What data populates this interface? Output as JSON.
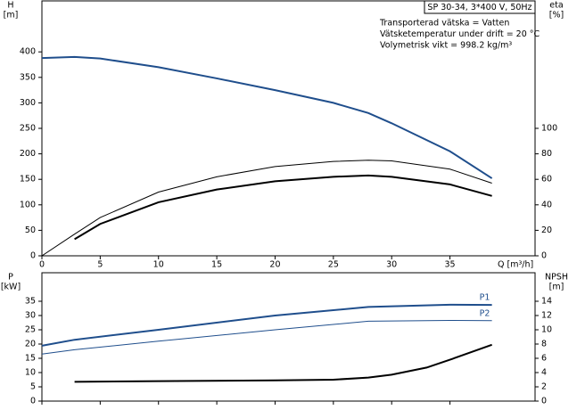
{
  "chart_data": [
    {
      "type": "line",
      "ylabel": "H",
      "yunit": "[m]",
      "y2label": "eta",
      "y2unit": "[%]",
      "xlabel": "Q [m³/h]",
      "info_box": "SP 30-34, 3*400 V, 50Hz",
      "notes": [
        "Transporterad vätska = Vatten",
        "Vätsketemperatur under drift = 20 °C",
        "Volymetrisk vikt = 998.2 kg/m³"
      ],
      "xlim": [
        0,
        42.3
      ],
      "xticks": [
        0,
        5,
        10,
        15,
        20,
        25,
        30,
        35
      ],
      "ylim": [
        0,
        500
      ],
      "yticks": [
        0,
        50,
        100,
        150,
        200,
        250,
        300,
        350,
        400
      ],
      "y2lim": [
        0,
        200
      ],
      "y2ticks": [
        0,
        20,
        40,
        60,
        80,
        100
      ],
      "series": [
        {
          "color": "#1f4e8c",
          "width": 2,
          "x": [
            0,
            2.8,
            5,
            10,
            15,
            20,
            25,
            28,
            30,
            35,
            38.6
          ],
          "values": [
            388,
            390,
            387,
            370,
            348,
            325,
            300,
            280,
            260,
            205,
            152
          ]
        },
        {
          "color": "#000000",
          "width": 1,
          "axis": "y2",
          "x": [
            0,
            2.8,
            5,
            10,
            15,
            20,
            25,
            28,
            30,
            35,
            38.6
          ],
          "values": [
            0,
            17,
            30,
            50,
            62,
            70,
            74,
            75,
            74.5,
            68,
            57
          ]
        },
        {
          "color": "#000000",
          "width": 2,
          "axis": "y2",
          "x": [
            2.8,
            5,
            10,
            15,
            20,
            25,
            28,
            30,
            35,
            38.6
          ],
          "values": [
            13,
            25,
            42,
            52,
            58.5,
            62,
            63,
            62,
            56,
            47
          ]
        }
      ]
    },
    {
      "type": "line",
      "ylabel": "P",
      "yunit": "[kW]",
      "y2label": "NPSH",
      "y2unit": "[m]",
      "xlim": [
        0,
        42.3
      ],
      "xticks": [
        0,
        5,
        10,
        15,
        20,
        25,
        30,
        35
      ],
      "ylim": [
        0,
        45
      ],
      "yticks": [
        0,
        5,
        10,
        15,
        20,
        25,
        30,
        35
      ],
      "y2lim": [
        0,
        18
      ],
      "y2ticks": [
        0,
        2,
        4,
        6,
        8,
        10,
        12,
        14
      ],
      "series": [
        {
          "name": "P1",
          "color": "#1f4e8c",
          "width": 2,
          "x": [
            0,
            2.8,
            10,
            20,
            28,
            35,
            38.6
          ],
          "values": [
            19.4,
            21.5,
            25,
            30,
            33,
            33.8,
            33.7
          ]
        },
        {
          "name": "P2",
          "color": "#1f4e8c",
          "width": 1,
          "x": [
            0,
            2.8,
            10,
            20,
            28,
            35,
            38.6
          ],
          "values": [
            16.5,
            18,
            21,
            25,
            28,
            28.3,
            28.2
          ]
        },
        {
          "color": "#000000",
          "width": 2,
          "axis": "y2",
          "x": [
            2.8,
            10,
            20,
            25,
            28,
            30,
            33,
            35,
            38.6
          ],
          "values": [
            2.7,
            2.8,
            2.9,
            3.0,
            3.3,
            3.7,
            4.7,
            5.8,
            7.9
          ]
        }
      ]
    }
  ]
}
